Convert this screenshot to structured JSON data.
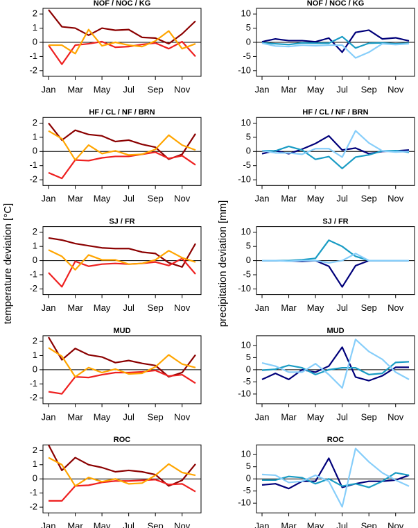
{
  "y_axis_labels": {
    "left": "temperature deviation [°C]",
    "right": "precipitation deviation [mm]"
  },
  "chart_data": [
    {
      "type": "line",
      "title": "NOF / NOC / KG",
      "categories": [
        "Jan",
        null,
        "Mar",
        null,
        "May",
        null,
        "Jul",
        null,
        "Sep",
        null,
        "Nov",
        null
      ],
      "series": [
        {
          "color": "#8b0000",
          "values": [
            2.3,
            1.1,
            1.0,
            0.5,
            1.0,
            0.85,
            0.9,
            0.35,
            0.3,
            -0.1,
            0.6,
            1.5
          ]
        },
        {
          "color": "#ee2020",
          "values": [
            -0.2,
            -1.55,
            -0.2,
            -0.1,
            0.05,
            -0.35,
            -0.3,
            -0.15,
            -0.05,
            -0.45,
            0.05,
            -1.0
          ]
        },
        {
          "color": "#ffa500",
          "values": [
            -0.2,
            -0.2,
            -0.8,
            0.9,
            -0.25,
            0.0,
            -0.2,
            -0.3,
            0.1,
            0.8,
            -0.45,
            -0.1
          ]
        }
      ],
      "ylim": [
        -2.4,
        2.4
      ],
      "yticks": [
        -2,
        -1,
        0,
        1,
        2
      ]
    },
    {
      "type": "line",
      "title": "NOF / NOC / KG",
      "categories": [
        "Jan",
        null,
        "Mar",
        null,
        "May",
        null,
        "Jul",
        null,
        "Sep",
        null,
        "Nov",
        null
      ],
      "series": [
        {
          "color": "#00007a",
          "values": [
            0.2,
            1.2,
            0.6,
            0.6,
            0.2,
            1.5,
            -3.5,
            3.5,
            4.3,
            1.2,
            1.6,
            0.5
          ]
        },
        {
          "color": "#1a9cc4",
          "values": [
            -0.2,
            -0.5,
            -0.8,
            -0.2,
            -0.3,
            -0.3,
            2.0,
            -2.0,
            -0.3,
            -0.2,
            -0.5,
            -0.3
          ]
        },
        {
          "color": "#87cefa",
          "values": [
            -0.3,
            -1.3,
            -1.5,
            -1.0,
            -1.2,
            -1.0,
            -1.0,
            -5.5,
            -3.5,
            -0.5,
            -0.8,
            -0.5
          ]
        }
      ],
      "ylim": [
        -12,
        12
      ],
      "yticks": [
        -10,
        -5,
        0,
        5,
        10
      ]
    },
    {
      "type": "line",
      "title": "HF / CL / NF / BRN",
      "categories": [
        "Jan",
        null,
        "Mar",
        null,
        "May",
        null,
        "Jul",
        null,
        "Sep",
        null,
        "Nov",
        null
      ],
      "series": [
        {
          "color": "#8b0000",
          "values": [
            2.0,
            0.8,
            1.5,
            1.2,
            1.1,
            0.7,
            0.8,
            0.5,
            0.3,
            -0.55,
            -0.2,
            1.25
          ]
        },
        {
          "color": "#ee2020",
          "values": [
            -1.5,
            -1.9,
            -0.6,
            -0.65,
            -0.45,
            -0.35,
            -0.35,
            -0.2,
            -0.05,
            -0.5,
            -0.3,
            -0.95
          ]
        },
        {
          "color": "#ffa500",
          "values": [
            1.45,
            0.9,
            -0.6,
            0.45,
            -0.15,
            0.05,
            -0.25,
            -0.2,
            0.15,
            1.15,
            0.45,
            0.1
          ]
        }
      ],
      "ylim": [
        -2.4,
        2.4
      ],
      "yticks": [
        -2,
        -1,
        0,
        1,
        2
      ]
    },
    {
      "type": "line",
      "title": "HF / CL / NF / BRN",
      "categories": [
        "Jan",
        null,
        "Mar",
        null,
        "May",
        null,
        "Jul",
        null,
        "Sep",
        null,
        "Nov",
        null
      ],
      "series": [
        {
          "color": "#00007a",
          "values": [
            -0.8,
            0.3,
            -0.8,
            0.8,
            2.8,
            5.5,
            0.5,
            1.2,
            -0.8,
            0.0,
            0.2,
            0.5
          ]
        },
        {
          "color": "#1a9cc4",
          "values": [
            0.3,
            0.2,
            1.8,
            0.5,
            -2.8,
            -1.8,
            -6.0,
            -2.0,
            -1.2,
            0.2,
            0.3,
            -0.3
          ]
        },
        {
          "color": "#87cefa",
          "values": [
            0.3,
            -0.5,
            -0.5,
            -1.0,
            1.0,
            1.0,
            -2.0,
            7.3,
            3.0,
            0.2,
            -0.2,
            0.0
          ]
        }
      ],
      "ylim": [
        -12,
        12
      ],
      "yticks": [
        -10,
        -5,
        0,
        5,
        10
      ]
    },
    {
      "type": "line",
      "title": "SJ / FR",
      "categories": [
        "Jan",
        null,
        "Mar",
        null,
        "May",
        null,
        "Jul",
        null,
        "Sep",
        null,
        "Nov",
        null
      ],
      "series": [
        {
          "color": "#8b0000",
          "values": [
            1.6,
            1.45,
            1.2,
            1.05,
            0.9,
            0.85,
            0.85,
            0.6,
            0.5,
            -0.15,
            -0.45,
            1.2
          ]
        },
        {
          "color": "#ee2020",
          "values": [
            -0.85,
            -1.85,
            -0.05,
            -0.4,
            -0.25,
            -0.2,
            -0.25,
            -0.2,
            -0.1,
            -0.35,
            0.15,
            -0.95
          ]
        },
        {
          "color": "#ffa500",
          "values": [
            0.75,
            0.3,
            -0.65,
            0.4,
            0.05,
            0.05,
            -0.25,
            -0.2,
            0.05,
            0.7,
            0.2,
            -0.1
          ]
        }
      ],
      "ylim": [
        -2.4,
        2.4
      ],
      "yticks": [
        -2,
        -1,
        0,
        1,
        2
      ]
    },
    {
      "type": "line",
      "title": "SJ / FR",
      "categories": [
        "Jan",
        null,
        "Mar",
        null,
        "May",
        null,
        "Jul",
        null,
        "Sep",
        null,
        "Nov",
        null
      ],
      "series": [
        {
          "color": "#00007a",
          "values": [
            0,
            0,
            -0.1,
            -0.3,
            0,
            -2,
            -9.3,
            -1.8,
            0,
            0,
            0,
            0
          ]
        },
        {
          "color": "#1a9cc4",
          "values": [
            0,
            0,
            0,
            0.3,
            0.8,
            7.2,
            5.0,
            1.5,
            0,
            0,
            0,
            0
          ]
        },
        {
          "color": "#87cefa",
          "values": [
            0,
            0,
            -0.2,
            0,
            0,
            -0.8,
            0,
            2.5,
            0,
            0,
            0,
            0
          ]
        }
      ],
      "ylim": [
        -12,
        12
      ],
      "yticks": [
        -10,
        -5,
        0,
        5,
        10
      ]
    },
    {
      "type": "line",
      "title": "MUD",
      "categories": [
        "Jan",
        null,
        "Mar",
        null,
        "May",
        null,
        "Jul",
        null,
        "Sep",
        null,
        "Nov",
        null
      ],
      "series": [
        {
          "color": "#8b0000",
          "values": [
            2.3,
            0.7,
            1.5,
            1.05,
            0.9,
            0.5,
            0.65,
            0.45,
            0.3,
            -0.5,
            -0.2,
            1.05
          ]
        },
        {
          "color": "#ee2020",
          "values": [
            -1.55,
            -1.7,
            -0.5,
            -0.55,
            -0.35,
            -0.2,
            -0.2,
            -0.15,
            -0.05,
            -0.45,
            -0.35,
            -0.95
          ]
        },
        {
          "color": "#ffa500",
          "values": [
            1.55,
            0.95,
            -0.5,
            0.15,
            -0.2,
            0.05,
            -0.3,
            -0.25,
            0.2,
            1.05,
            0.4,
            0.15
          ]
        }
      ],
      "ylim": [
        -2.4,
        2.4
      ],
      "yticks": [
        -2,
        -1,
        0,
        1,
        2
      ]
    },
    {
      "type": "line",
      "title": "MUD",
      "categories": [
        "Jan",
        null,
        "Mar",
        null,
        "May",
        null,
        "Jul",
        null,
        "Sep",
        null,
        "Nov",
        null
      ],
      "series": [
        {
          "color": "#00007a",
          "values": [
            -4,
            -1.5,
            -4,
            0,
            -1,
            1.5,
            9.3,
            -3,
            -4.5,
            -2.5,
            1,
            1
          ]
        },
        {
          "color": "#1a9cc4",
          "values": [
            -0.2,
            0.2,
            1.8,
            0.8,
            -2,
            0,
            0.8,
            0.8,
            -2,
            -1.5,
            3,
            3.3
          ]
        },
        {
          "color": "#87cefa",
          "values": [
            2.8,
            1.5,
            -1,
            -1,
            2.5,
            -2,
            -7.5,
            12.5,
            7.5,
            4.3,
            -1,
            -4
          ]
        }
      ],
      "ylim": [
        -14,
        14
      ],
      "yticks": [
        -10,
        -5,
        0,
        5,
        10
      ]
    },
    {
      "type": "line",
      "title": "ROC",
      "categories": [
        "Jan",
        null,
        "Mar",
        null,
        "May",
        null,
        "Jul",
        null,
        "Sep",
        null,
        "Nov",
        null
      ],
      "series": [
        {
          "color": "#8b0000",
          "values": [
            2.4,
            0.6,
            1.5,
            1.0,
            0.8,
            0.5,
            0.6,
            0.5,
            0.3,
            -0.5,
            -0.1,
            1.05
          ]
        },
        {
          "color": "#ee2020",
          "values": [
            -1.55,
            -1.55,
            -0.5,
            -0.45,
            -0.25,
            -0.15,
            -0.15,
            -0.1,
            -0.05,
            -0.4,
            -0.35,
            -0.9
          ]
        },
        {
          "color": "#ffa500",
          "values": [
            1.5,
            1.0,
            -0.5,
            0.1,
            -0.2,
            0.0,
            -0.35,
            -0.3,
            0.25,
            1.05,
            0.45,
            0.25
          ]
        }
      ],
      "ylim": [
        -2.4,
        2.4
      ],
      "yticks": [
        -2,
        -1,
        0,
        1,
        2
      ]
    },
    {
      "type": "line",
      "title": "ROC",
      "categories": [
        "Jan",
        null,
        "Mar",
        null,
        "May",
        null,
        "Jul",
        null,
        "Sep",
        null,
        "Nov",
        null
      ],
      "series": [
        {
          "color": "#00007a",
          "values": [
            -2.5,
            -2,
            -4,
            -1,
            -1,
            8.5,
            -3.5,
            -2,
            -1,
            -1,
            -0.5,
            1.5
          ]
        },
        {
          "color": "#1a9cc4",
          "values": [
            -0.5,
            -0.5,
            1,
            0.5,
            -2,
            0,
            -3,
            -2,
            -3.5,
            -1,
            2.5,
            1.5
          ]
        },
        {
          "color": "#87cefa",
          "values": [
            1.8,
            1.5,
            -1.5,
            -1,
            1.5,
            -1,
            -11.5,
            12.5,
            7,
            2.5,
            -0.5,
            -3
          ]
        }
      ],
      "ylim": [
        -14,
        14
      ],
      "yticks": [
        -10,
        -5,
        0,
        5,
        10
      ]
    }
  ]
}
